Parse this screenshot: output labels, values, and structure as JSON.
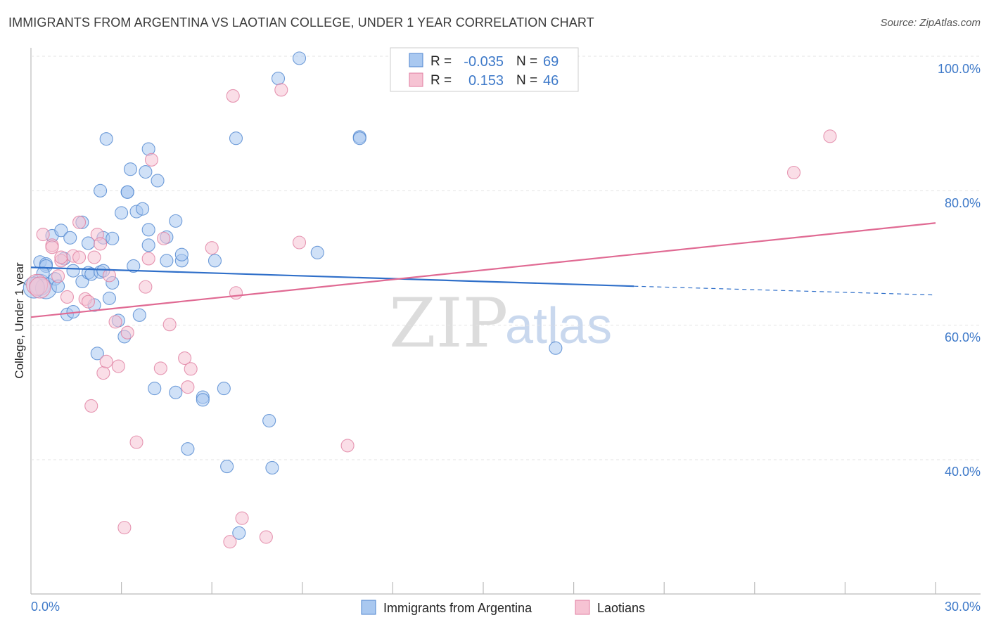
{
  "header": {
    "title": "IMMIGRANTS FROM ARGENTINA VS LAOTIAN COLLEGE, UNDER 1 YEAR CORRELATION CHART",
    "source": "Source: ZipAtlas.com"
  },
  "watermark": {
    "zip": "ZIP",
    "atlas": "atlas"
  },
  "legend": {
    "rows": [
      {
        "r_label": "R =",
        "r_value": "-0.035",
        "n_label": "N =",
        "n_value": "69"
      },
      {
        "r_label": "R =",
        "r_value": "0.153",
        "n_label": "N =",
        "n_value": "46"
      }
    ]
  },
  "bottom_legend": {
    "series1": "Immigrants from Argentina",
    "series2": "Laotians"
  },
  "chart_data": {
    "type": "scatter",
    "title": "IMMIGRANTS FROM ARGENTINA VS LAOTIAN COLLEGE, UNDER 1 YEAR CORRELATION CHART",
    "xlabel": "",
    "ylabel": "College, Under 1 year",
    "xlim": [
      0,
      30
    ],
    "ylim": [
      20,
      102
    ],
    "x_tick_labels": [
      "0.0%",
      "30.0%"
    ],
    "y_ticks": [
      40,
      60,
      80,
      100
    ],
    "y_tick_labels": [
      "40.0%",
      "60.0%",
      "80.0%",
      "100.0%"
    ],
    "colors": {
      "series1_fill": "#a9c8f0",
      "series1_stroke": "#4f86cf",
      "series1_line": "#2f6fc9",
      "series2_fill": "#f6c3d3",
      "series2_stroke": "#e07ea0",
      "series2_line": "#e06a93"
    },
    "series": [
      {
        "name": "Immigrants from Argentina",
        "r": -0.035,
        "n": 69,
        "trend": {
          "x0": 0.0,
          "y0": 68.6,
          "x1": 20.0,
          "y1": 65.8,
          "dash_to_x": 30.0,
          "dash_to_y": 64.5
        },
        "points": [
          [
            0.3,
            69.4
          ],
          [
            0.3,
            66.0
          ],
          [
            0.5,
            69.1
          ],
          [
            0.5,
            68.8
          ],
          [
            0.5,
            65.5
          ],
          [
            0.4,
            67.7
          ],
          [
            0.8,
            66.9
          ],
          [
            0.9,
            65.8
          ],
          [
            0.7,
            73.3
          ],
          [
            1.0,
            74.1
          ],
          [
            1.1,
            69.9
          ],
          [
            1.3,
            73.0
          ],
          [
            1.4,
            68.1
          ],
          [
            1.2,
            61.6
          ],
          [
            1.4,
            62.0
          ],
          [
            1.7,
            66.5
          ],
          [
            1.7,
            75.3
          ],
          [
            1.9,
            67.8
          ],
          [
            1.9,
            72.2
          ],
          [
            2.0,
            67.6
          ],
          [
            2.1,
            63.0
          ],
          [
            2.2,
            55.8
          ],
          [
            2.3,
            80.0
          ],
          [
            2.3,
            67.9
          ],
          [
            2.4,
            68.1
          ],
          [
            2.4,
            73.0
          ],
          [
            2.5,
            87.7
          ],
          [
            2.6,
            64.0
          ],
          [
            2.7,
            72.9
          ],
          [
            2.7,
            66.3
          ],
          [
            2.9,
            60.7
          ],
          [
            3.0,
            76.7
          ],
          [
            3.1,
            58.3
          ],
          [
            3.2,
            79.8
          ],
          [
            3.2,
            79.8
          ],
          [
            3.3,
            83.2
          ],
          [
            3.4,
            68.8
          ],
          [
            3.5,
            76.9
          ],
          [
            3.6,
            61.5
          ],
          [
            3.7,
            77.3
          ],
          [
            3.8,
            82.8
          ],
          [
            3.9,
            71.9
          ],
          [
            3.9,
            86.2
          ],
          [
            3.9,
            74.2
          ],
          [
            4.1,
            50.6
          ],
          [
            4.2,
            81.5
          ],
          [
            4.5,
            73.1
          ],
          [
            4.5,
            69.6
          ],
          [
            4.8,
            75.5
          ],
          [
            4.8,
            50.0
          ],
          [
            5.0,
            69.6
          ],
          [
            5.0,
            70.5
          ],
          [
            5.2,
            41.6
          ],
          [
            5.7,
            49.3
          ],
          [
            5.7,
            48.9
          ],
          [
            6.1,
            69.6
          ],
          [
            6.4,
            50.6
          ],
          [
            6.5,
            39.0
          ],
          [
            6.8,
            87.8
          ],
          [
            6.9,
            29.1
          ],
          [
            7.9,
            45.8
          ],
          [
            8.0,
            38.8
          ],
          [
            8.2,
            96.7
          ],
          [
            8.9,
            99.7
          ],
          [
            9.5,
            70.8
          ],
          [
            10.9,
            88.0
          ],
          [
            10.9,
            87.8
          ],
          [
            17.4,
            56.6
          ],
          [
            0.1,
            65.6
          ]
        ]
      },
      {
        "name": "Laotians",
        "r": 0.153,
        "n": 46,
        "trend": {
          "x0": 0.0,
          "y0": 61.2,
          "x1": 30.0,
          "y1": 75.2
        },
        "points": [
          [
            0.2,
            66.0
          ],
          [
            0.3,
            65.6
          ],
          [
            0.4,
            73.5
          ],
          [
            0.7,
            71.9
          ],
          [
            0.7,
            71.6
          ],
          [
            0.9,
            67.3
          ],
          [
            1.0,
            69.6
          ],
          [
            1.0,
            70.1
          ],
          [
            1.2,
            64.2
          ],
          [
            1.4,
            70.3
          ],
          [
            1.6,
            70.1
          ],
          [
            1.6,
            75.3
          ],
          [
            1.8,
            63.9
          ],
          [
            1.9,
            63.5
          ],
          [
            2.0,
            48.0
          ],
          [
            2.1,
            70.1
          ],
          [
            2.2,
            73.5
          ],
          [
            2.3,
            72.1
          ],
          [
            2.4,
            52.9
          ],
          [
            2.5,
            54.6
          ],
          [
            2.6,
            67.4
          ],
          [
            2.8,
            60.5
          ],
          [
            2.9,
            53.9
          ],
          [
            3.1,
            29.9
          ],
          [
            3.2,
            58.9
          ],
          [
            3.5,
            42.6
          ],
          [
            3.8,
            65.7
          ],
          [
            3.9,
            69.9
          ],
          [
            4.0,
            84.6
          ],
          [
            4.3,
            53.6
          ],
          [
            4.4,
            72.9
          ],
          [
            4.6,
            60.1
          ],
          [
            5.1,
            55.1
          ],
          [
            5.2,
            50.8
          ],
          [
            5.3,
            53.5
          ],
          [
            6.0,
            71.5
          ],
          [
            6.6,
            27.8
          ],
          [
            6.7,
            94.1
          ],
          [
            6.8,
            64.8
          ],
          [
            7.0,
            31.3
          ],
          [
            7.8,
            28.5
          ],
          [
            8.3,
            95.0
          ],
          [
            8.9,
            72.3
          ],
          [
            10.5,
            42.1
          ],
          [
            25.3,
            82.7
          ],
          [
            26.5,
            88.1
          ]
        ]
      }
    ]
  }
}
